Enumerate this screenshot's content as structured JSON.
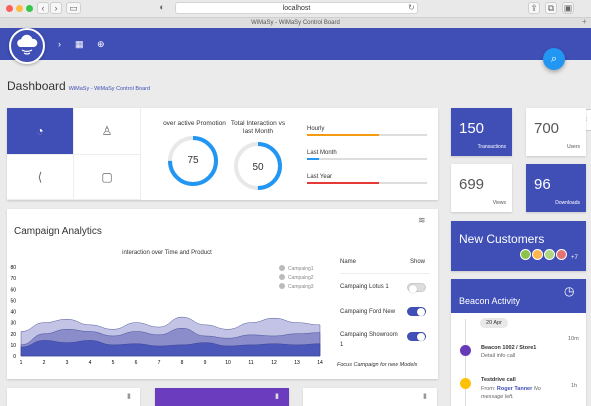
{
  "browser": {
    "url": "localhost",
    "tab_title": "WiMaSy - WiMaSy Control Board"
  },
  "header": {
    "title": "Dashboard",
    "subtitle": "WiMaSy - WiMaSy Control Board"
  },
  "gauges": [
    {
      "label": "over active Promotion",
      "value": "75",
      "percent": 75
    },
    {
      "label": "Total Interaction vs last Month",
      "value": "50",
      "percent": 50
    }
  ],
  "bars": [
    {
      "label": "Hourly",
      "percent": 60,
      "color": "#f39c12"
    },
    {
      "label": "Last Month",
      "percent": 10,
      "color": "#2196f3"
    },
    {
      "label": "Last Year",
      "percent": 60,
      "color": "#e53935"
    }
  ],
  "stats": [
    {
      "value": "150",
      "caption": "Transactions"
    },
    {
      "value": "700",
      "caption": "Users"
    },
    {
      "value": "699",
      "caption": "Views"
    },
    {
      "value": "96",
      "caption": "Downloads"
    }
  ],
  "analytics": {
    "title": "Campaign Analytics",
    "chart_title": "interaction over Time and Product",
    "table_headers": {
      "name": "Name",
      "show": "Show"
    },
    "campaigns": [
      {
        "name": "Campaing Lotus 1",
        "on": false
      },
      {
        "name": "Campaing Ford New",
        "on": true
      },
      {
        "name": "Campaing Showroom 1",
        "on": true
      }
    ],
    "footer": "Focus Campaign for new Models"
  },
  "customers": {
    "title": "New Customers",
    "extra": "+7"
  },
  "beacon": {
    "title": "Beacon Activity",
    "date": "20 Apr",
    "items": [
      {
        "title": "Beacon 1002 / Store1",
        "sub": "Detail info call",
        "time": "10m"
      },
      {
        "title": "Testdrive call",
        "from_label": "From:",
        "from": "Roger Tanner",
        "note": "No message left.",
        "time": "1h"
      }
    ]
  },
  "chart_data": {
    "type": "area",
    "title": "interaction over Time and Product",
    "x": [
      1,
      2,
      3,
      4,
      5,
      6,
      7,
      8,
      9,
      10,
      11,
      12,
      13,
      14
    ],
    "ylim": [
      0,
      80
    ],
    "yticks": [
      0,
      10,
      20,
      30,
      40,
      50,
      60,
      70,
      80
    ],
    "series": [
      {
        "name": "Campaing1",
        "values": [
          22,
          30,
          33,
          28,
          24,
          30,
          26,
          35,
          28,
          24,
          30,
          34,
          30,
          28
        ],
        "color": "#b7b9e0"
      },
      {
        "name": "Campaing2",
        "values": [
          10,
          20,
          24,
          22,
          18,
          22,
          19,
          25,
          18,
          16,
          19,
          18,
          20,
          21
        ],
        "color": "#8084c6"
      },
      {
        "name": "Campaing3",
        "values": [
          8,
          14,
          12,
          14,
          10,
          11,
          9,
          10,
          12,
          9,
          10,
          11,
          10,
          11
        ],
        "color": "#3f4fb6"
      }
    ],
    "legend_position": "top-right",
    "grid": false
  }
}
